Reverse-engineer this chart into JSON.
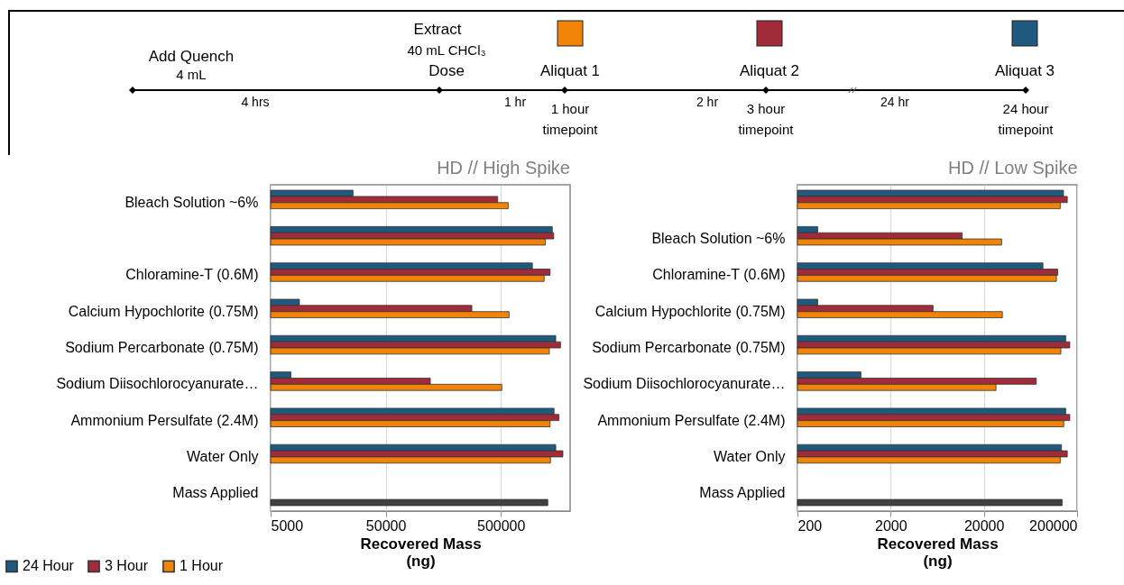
{
  "chart_data": [
    {
      "type": "other",
      "annotations": [
        "Add Quench",
        "4 mL",
        "Extract",
        "40 mL CHCl₃",
        "Dose",
        "Aliquat 1",
        "Aliquat 2",
        "Aliquat 3",
        "4 hrs",
        "1 hr",
        "2 hr",
        "24 hr",
        "1 hour",
        "timepoint",
        "3 hour",
        "timepoint",
        "24 hour",
        "timepoint"
      ]
    },
    {
      "type": "bar",
      "orientation": "horizontal",
      "title": "HD // High Spike",
      "xlabel": "Recovered Mass\n(ng)",
      "log": "x",
      "grid": "x",
      "legend": "bottom left",
      "categories": [
        "Bleach Solution ~6%",
        null,
        "Chloramine-T (0.6M)",
        "Calcium Hypochlorite (0.75M)",
        "Sodium Percarbonate (0.75M)",
        "Sodium Diisochlorocyanurate…",
        "Ammonium Persulfate (2.4M)",
        "Water Only",
        "Mass Applied"
      ],
      "xlim": [
        5000,
        2000000
      ],
      "xticks": [
        5000,
        50000,
        500000
      ],
      "series": [
        {
          "name": "24 Hour",
          "color": "#1f5a7e",
          "values": [
            26000,
            1400000,
            940000,
            8900,
            1500000,
            7500,
            1450000,
            1500000,
            null
          ]
        },
        {
          "name": "3 Hour",
          "color": "#a02b39",
          "values": [
            470000,
            1440000,
            1340000,
            280000,
            1650000,
            122000,
            1600000,
            1730000,
            null
          ]
        },
        {
          "name": "1 Hour",
          "color": "#f08308",
          "values": [
            580000,
            1220000,
            1190000,
            590000,
            1320000,
            510000,
            1340000,
            1350000,
            null
          ]
        },
        {
          "color": "#404040",
          "values": [
            null,
            null,
            null,
            null,
            null,
            null,
            null,
            null,
            1280000
          ]
        }
      ]
    },
    {
      "type": "bar",
      "orientation": "horizontal",
      "title": "HD // Low Spike",
      "xlabel": "Recovered Mass\n(ng)",
      "log": "x",
      "grid": "x",
      "categories": [
        null,
        "Bleach Solution ~6%",
        "Chloramine-T (0.6M)",
        "Calcium Hypochlorite (0.75M)",
        "Sodium Percarbonate (0.75M)",
        "Sodium Diisochlorocyanurate…",
        "Ammonium Persulfate (2.4M)",
        "Water Only",
        "Mass Applied"
      ],
      "xlim": [
        200,
        200000
      ],
      "xticks": [
        200,
        2000,
        20000,
        200000
      ],
      "series": [
        {
          "color": "#1f5a7e",
          "values": [
            143000,
            330,
            86000,
            330,
            151000,
            960,
            151000,
            136000,
            null
          ]
        },
        {
          "color": "#a02b39",
          "values": [
            157000,
            11700,
            124000,
            5700,
            167000,
            73000,
            167000,
            157000,
            null
          ]
        },
        {
          "color": "#f08308",
          "values": [
            132000,
            31000,
            120000,
            31600,
            134000,
            27000,
            144000,
            132000,
            null
          ]
        },
        {
          "color": "#404040",
          "values": [
            null,
            null,
            null,
            null,
            null,
            null,
            null,
            null,
            138000
          ]
        }
      ]
    }
  ]
}
